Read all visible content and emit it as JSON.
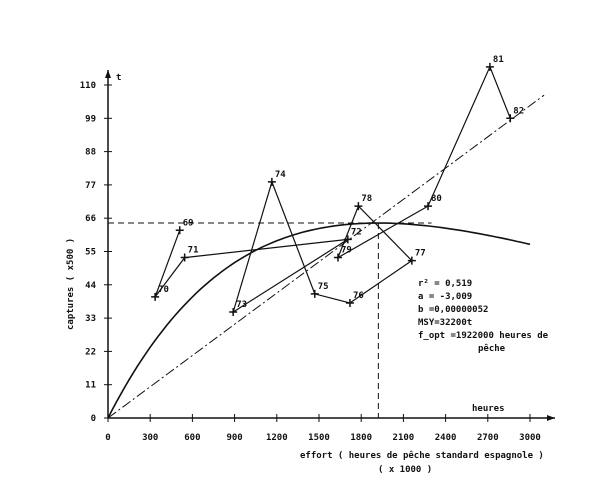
{
  "chart_data": {
    "type": "line",
    "title": "",
    "xlabel": "effort ( heures de pêche standard espagnole )",
    "xlabel_unit": "( x 1000 )",
    "x_axis_end_label": "heures",
    "ylabel": "captures ( x500 )",
    "y_axis_end_label": "t",
    "xlim": [
      0,
      3000
    ],
    "ylim": [
      0,
      110
    ],
    "xticks": [
      "0",
      "300",
      "600",
      "900",
      "1200",
      "1500",
      "1800",
      "2100",
      "2400",
      "2700",
      "3000"
    ],
    "yticks": [
      "0",
      "11",
      "22",
      "33",
      "44",
      "55",
      "66",
      "77",
      "88",
      "99",
      "110"
    ],
    "grid": false,
    "observed_series": {
      "labels": [
        "69",
        "70",
        "71",
        "72",
        "73",
        "74",
        "75",
        "76",
        "77",
        "78",
        "79",
        "80",
        "81",
        "82"
      ],
      "x": [
        510,
        335,
        545,
        1705,
        890,
        1165,
        1470,
        1720,
        2160,
        1780,
        1635,
        2275,
        2715,
        2860
      ],
      "y": [
        62,
        40,
        53,
        59,
        35,
        78,
        41,
        38,
        52,
        70,
        53,
        70,
        116,
        99
      ]
    },
    "model_curve": {
      "type": "Fox exponential",
      "peak_x": 1922,
      "peak_y": 64.4
    },
    "regression_line": {
      "style": "dash-dot",
      "slope": 0.0344
    },
    "reference_lines": {
      "x": 1922,
      "y": 64.4
    },
    "annotations": [
      "r² = 0,519",
      "a = -3,009",
      "b =0,00000052",
      "MSY=32200t",
      "f_opt =1922000 heures de",
      "pêche"
    ],
    "colors": {
      "ink": "#111111",
      "background": "#ffffff"
    }
  }
}
